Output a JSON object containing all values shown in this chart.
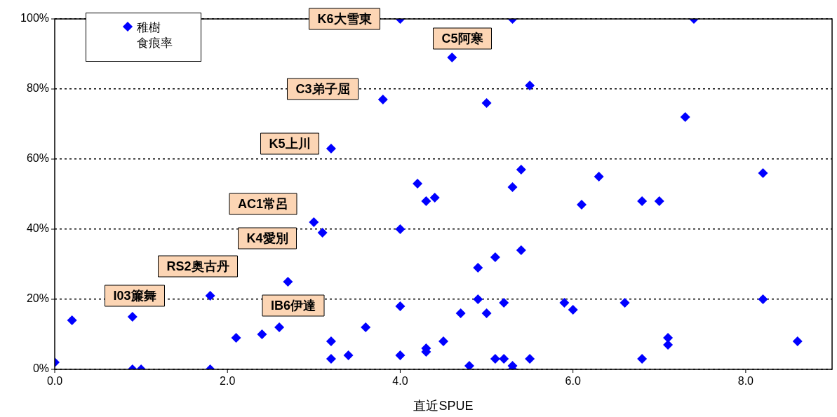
{
  "chart_data": {
    "type": "scatter",
    "xlabel": "直近SPUE",
    "marker": "diamond",
    "grid": "y",
    "legend": "top left",
    "xlim": [
      0,
      9
    ],
    "xticks": [
      {
        "value": 0,
        "label": "0.0"
      },
      {
        "value": 2,
        "label": "2.0"
      },
      {
        "value": 4,
        "label": "4.0"
      },
      {
        "value": 6,
        "label": "6.0"
      },
      {
        "value": 8,
        "label": "8.0"
      }
    ],
    "ylim": [
      0,
      100
    ],
    "yticks": [
      {
        "value": 0,
        "label": "0%"
      },
      {
        "value": 20,
        "label": "20%"
      },
      {
        "value": 40,
        "label": "40%"
      },
      {
        "value": 60,
        "label": "60%"
      },
      {
        "value": 80,
        "label": "80%"
      },
      {
        "value": 100,
        "label": "100%"
      }
    ],
    "series": [
      {
        "name": "稚樹食痕率",
        "color": "#0000ff",
        "x": [
          0,
          0.2,
          0.9,
          0.9,
          1.0,
          1.8,
          1.8,
          2.1,
          2.4,
          2.6,
          2.7,
          3.0,
          3.1,
          3.2,
          3.2,
          3.2,
          3.4,
          3.6,
          3.8,
          4.0,
          4.0,
          4.0,
          4.0,
          4.2,
          4.3,
          4.3,
          4.3,
          4.4,
          4.5,
          4.6,
          4.7,
          4.8,
          4.9,
          4.9,
          5.0,
          5.0,
          5.1,
          5.1,
          5.2,
          5.2,
          5.3,
          5.3,
          5.3,
          5.3,
          5.4,
          5.4,
          5.5,
          5.5,
          5.9,
          6.0,
          6.1,
          6.3,
          6.6,
          6.8,
          6.8,
          7.0,
          7.1,
          7.1,
          7.3,
          7.4,
          8.2,
          8.2,
          8.6
        ],
        "values": [
          2,
          14,
          15,
          0,
          0,
          21,
          0,
          9,
          10,
          12,
          25,
          42,
          39,
          63,
          8,
          3,
          4,
          12,
          77,
          100,
          40,
          18,
          4,
          53,
          48,
          6,
          5,
          49,
          8,
          89,
          16,
          1,
          29,
          20,
          76,
          16,
          32,
          3,
          3,
          19,
          100,
          52,
          1,
          0,
          57,
          34,
          81,
          3,
          19,
          17,
          47,
          55,
          19,
          48,
          3,
          48,
          9,
          7,
          72,
          100,
          56,
          20,
          8
        ]
      }
    ],
    "annotations": [
      "K6大雪東",
      "C5阿寒",
      "C3弟子屈",
      "K5上川",
      "AC1常呂",
      "K4愛別",
      "RS2奥古丹",
      "I03簾舞",
      "IB6伊達"
    ]
  }
}
